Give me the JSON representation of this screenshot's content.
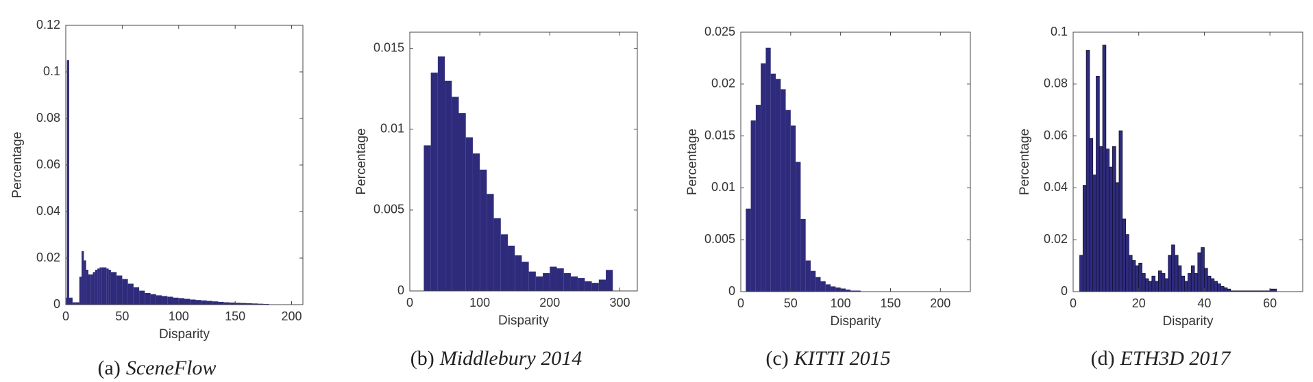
{
  "chart_data": [
    {
      "type": "histogram",
      "label": "(a)",
      "title": "SceneFlow",
      "xlabel": "Disparity",
      "ylabel": "Percentage",
      "color": "#2f2b7c",
      "bins": [
        0,
        1,
        3,
        6,
        9,
        12,
        14,
        16,
        18,
        20,
        22,
        24,
        26,
        28,
        30,
        32,
        34,
        36,
        38,
        40,
        45,
        50,
        55,
        60,
        65,
        70,
        75,
        80,
        85,
        90,
        95,
        100,
        105,
        110,
        115,
        120,
        125,
        130,
        135,
        140,
        145,
        150,
        155,
        160,
        165,
        170,
        175,
        180
      ],
      "values": [
        0.003,
        0.105,
        0.003,
        0.001,
        0.001,
        0.012,
        0.023,
        0.019,
        0.015,
        0.013,
        0.013,
        0.014,
        0.015,
        0.0155,
        0.016,
        0.016,
        0.016,
        0.0155,
        0.015,
        0.014,
        0.0125,
        0.011,
        0.009,
        0.0075,
        0.006,
        0.005,
        0.0045,
        0.004,
        0.0037,
        0.0034,
        0.003,
        0.0028,
        0.0025,
        0.0022,
        0.002,
        0.0018,
        0.0016,
        0.0014,
        0.0012,
        0.001,
        0.0009,
        0.0008,
        0.0007,
        0.0006,
        0.0005,
        0.0004,
        0.0003
      ],
      "xlim": [
        0,
        210
      ],
      "xticks": [
        0,
        50,
        100,
        150,
        200
      ],
      "ylim": [
        0,
        0.12
      ],
      "yticks": [
        0,
        0.02,
        0.04,
        0.06,
        0.08,
        0.1,
        0.12
      ]
    },
    {
      "type": "histogram",
      "label": "(b)",
      "title": "Middlebury 2014",
      "xlabel": "Disparity",
      "ylabel": "Percentage",
      "color": "#2f2b7c",
      "bins": [
        20,
        30,
        40,
        50,
        60,
        70,
        80,
        90,
        100,
        110,
        120,
        130,
        140,
        150,
        160,
        170,
        180,
        190,
        200,
        210,
        220,
        230,
        240,
        250,
        260,
        270,
        280,
        290
      ],
      "values": [
        0.009,
        0.0135,
        0.0145,
        0.013,
        0.012,
        0.011,
        0.0095,
        0.0085,
        0.0075,
        0.006,
        0.0045,
        0.0035,
        0.0028,
        0.0022,
        0.0018,
        0.0012,
        0.0009,
        0.0011,
        0.0015,
        0.0014,
        0.0011,
        0.0009,
        0.0008,
        0.0006,
        0.0005,
        0.0007,
        0.0013
      ],
      "xlim": [
        0,
        325
      ],
      "xticks": [
        0,
        100,
        200,
        300
      ],
      "ylim": [
        0,
        0.016
      ],
      "yticks": [
        0,
        0.005,
        0.01,
        0.015
      ]
    },
    {
      "type": "histogram",
      "label": "(c)",
      "title": "KITTI 2015",
      "xlabel": "Disparity",
      "ylabel": "Percentage",
      "color": "#2f2b7c",
      "bins": [
        5,
        10,
        15,
        20,
        25,
        30,
        35,
        40,
        45,
        50,
        55,
        60,
        65,
        70,
        75,
        80,
        85,
        90,
        95,
        100,
        105,
        110,
        115,
        120
      ],
      "values": [
        0.008,
        0.0165,
        0.018,
        0.022,
        0.0235,
        0.021,
        0.0205,
        0.0195,
        0.0175,
        0.016,
        0.0125,
        0.007,
        0.003,
        0.002,
        0.0014,
        0.001,
        0.0007,
        0.0005,
        0.0004,
        0.0003,
        0.0002,
        0.0001,
        0.0001
      ],
      "xlim": [
        0,
        230
      ],
      "xticks": [
        0,
        50,
        100,
        150,
        200
      ],
      "ylim": [
        0,
        0.025
      ],
      "yticks": [
        0,
        0.005,
        0.01,
        0.015,
        0.02,
        0.025
      ]
    },
    {
      "type": "histogram",
      "label": "(d)",
      "title": "ETH3D 2017",
      "xlabel": "Disparity",
      "ylabel": "Percentage",
      "color": "#2f2b7c",
      "edgecolor": "#111133",
      "bins": [
        2,
        3,
        4,
        5,
        6,
        7,
        8,
        9,
        10,
        11,
        12,
        13,
        14,
        15,
        16,
        17,
        18,
        19,
        20,
        21,
        22,
        23,
        24,
        25,
        26,
        27,
        28,
        29,
        30,
        31,
        32,
        33,
        34,
        35,
        36,
        37,
        38,
        39,
        40,
        41,
        42,
        43,
        44,
        45,
        46,
        47,
        48,
        60,
        62
      ],
      "values": [
        0.014,
        0.041,
        0.093,
        0.059,
        0.045,
        0.083,
        0.056,
        0.095,
        0.055,
        0.048,
        0.056,
        0.042,
        0.062,
        0.028,
        0.022,
        0.014,
        0.012,
        0.01,
        0.011,
        0.007,
        0.005,
        0.004,
        0.006,
        0.004,
        0.008,
        0.007,
        0.005,
        0.014,
        0.018,
        0.014,
        0.01,
        0.006,
        0.004,
        0.007,
        0.01,
        0.007,
        0.015,
        0.017,
        0.009,
        0.006,
        0.005,
        0.004,
        0.003,
        0.002,
        0.0015,
        0.001,
        0.0003,
        0.001
      ],
      "xlim": [
        0,
        70
      ],
      "xticks": [
        0,
        20,
        40,
        60
      ],
      "ylim": [
        0,
        0.1
      ],
      "yticks": [
        0,
        0.02,
        0.04,
        0.06,
        0.08,
        0.1
      ]
    }
  ]
}
